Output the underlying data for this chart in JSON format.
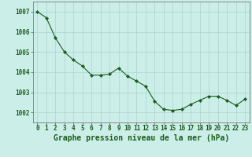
{
  "x": [
    0,
    1,
    2,
    3,
    4,
    5,
    6,
    7,
    8,
    9,
    10,
    11,
    12,
    13,
    14,
    15,
    16,
    17,
    18,
    19,
    20,
    21,
    22,
    23
  ],
  "y": [
    1007.0,
    1006.7,
    1005.7,
    1005.0,
    1004.6,
    1004.3,
    1003.85,
    1003.85,
    1003.9,
    1004.2,
    1003.8,
    1003.55,
    1003.3,
    1002.55,
    1002.15,
    1002.1,
    1002.15,
    1002.4,
    1002.6,
    1002.8,
    1002.8,
    1002.6,
    1002.35,
    1002.65
  ],
  "line_color": "#1a5c1a",
  "marker": "D",
  "marker_size": 2.2,
  "bg_color": "#cceee8",
  "grid_color": "#aad4cc",
  "title": "Graphe pression niveau de la mer (hPa)",
  "ylabel_ticks": [
    1002,
    1003,
    1004,
    1005,
    1006,
    1007
  ],
  "xlim": [
    -0.5,
    23.5
  ],
  "ylim": [
    1001.5,
    1007.5
  ],
  "tick_label_color": "#1a5c1a",
  "title_color": "#1a5c1a",
  "title_fontsize": 7.0,
  "tick_fontsize": 5.5
}
